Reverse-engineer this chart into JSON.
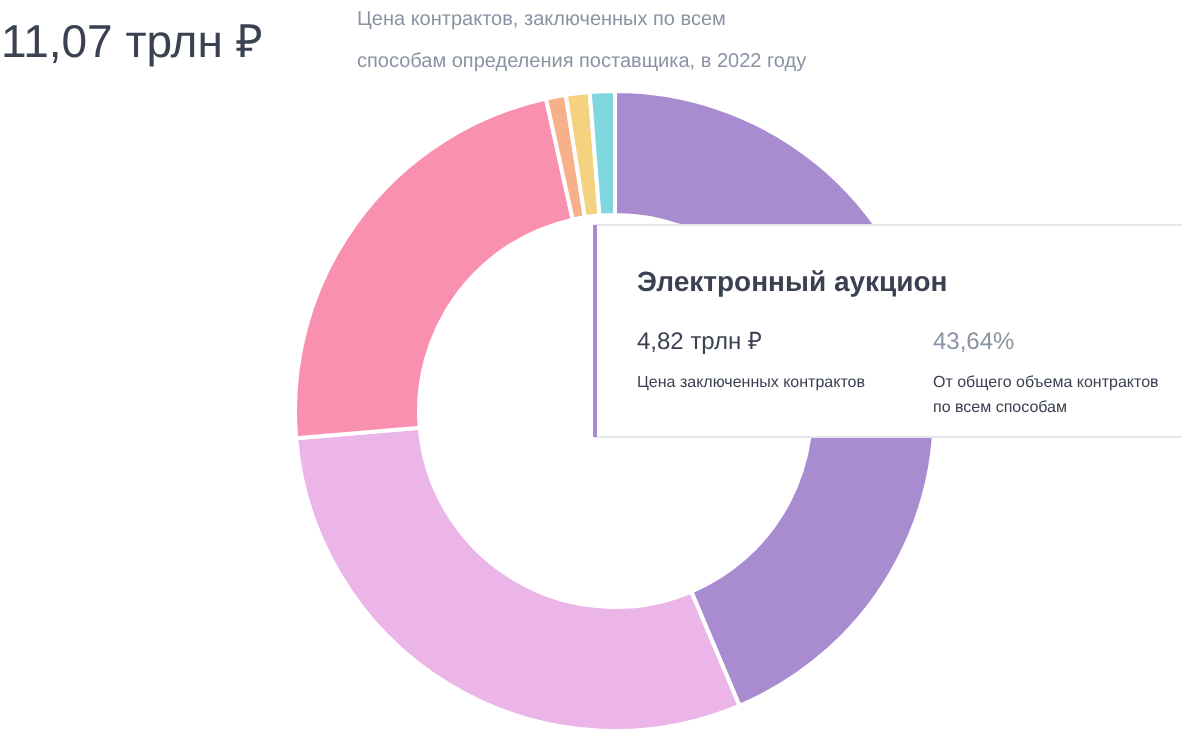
{
  "chart_data": {
    "type": "donut",
    "title": "11,07 трлн ₽",
    "subtitle": "Цена контрактов, заключенных по всем\nспособам определения поставщика, в 2022 году",
    "categories": [
      "Электронный аукцион",
      null,
      null,
      null,
      null,
      null
    ],
    "values": [
      43.64,
      30.0,
      22.9,
      1.0,
      1.2,
      1.26
    ],
    "value_labels": [
      "43,64%",
      null,
      null,
      null,
      null,
      null
    ],
    "colors": [
      "#a98bd0",
      "#ecb5e8",
      "#f990b0",
      "#f8b08a",
      "#f5d27f",
      "#7fd8e0"
    ],
    "annotations": [
      "4,82 трлн ₽",
      "Цена заключенных контрактов",
      "От общего объема контрактов\nпо всем способам"
    ]
  }
}
